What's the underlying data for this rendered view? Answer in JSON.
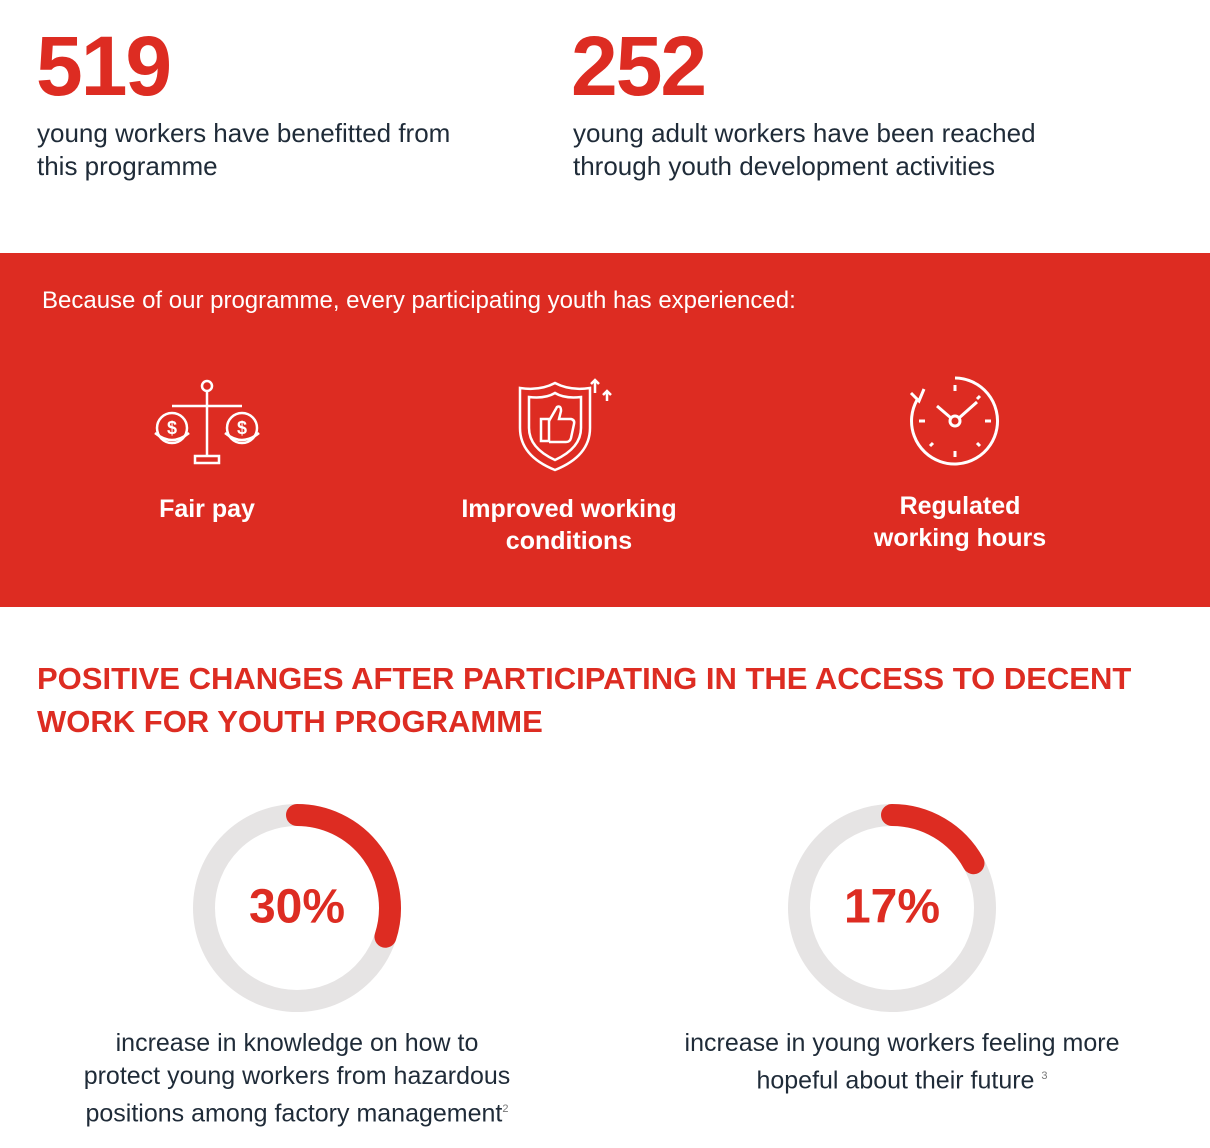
{
  "stats": [
    {
      "number": "519",
      "text": [
        "young workers have benefitted from",
        "this programme"
      ]
    },
    {
      "number": "252",
      "text": [
        "young adult workers have been reached",
        "through youth development activities"
      ]
    }
  ],
  "band": {
    "intro": "Because of our programme, every participating youth has experienced:",
    "items": [
      {
        "label": [
          "Fair pay"
        ]
      },
      {
        "label": [
          "Improved working",
          "conditions"
        ]
      },
      {
        "label": [
          "Regulated",
          "working hours"
        ]
      }
    ]
  },
  "heading": [
    "POSITIVE CHANGES AFTER PARTICIPATING IN THE ACCESS TO DECENT",
    "WORK FOR YOUTH PROGRAMME"
  ],
  "donuts": [
    {
      "value": 30,
      "value_label": "30%",
      "text": [
        "increase in knowledge on how to",
        "protect young workers from hazardous",
        "positions among factory management"
      ],
      "note": "2"
    },
    {
      "value": 17,
      "value_label": "17%",
      "text": [
        "increase in young workers feeling more",
        "hopeful about their future"
      ],
      "note": "3"
    }
  ]
}
